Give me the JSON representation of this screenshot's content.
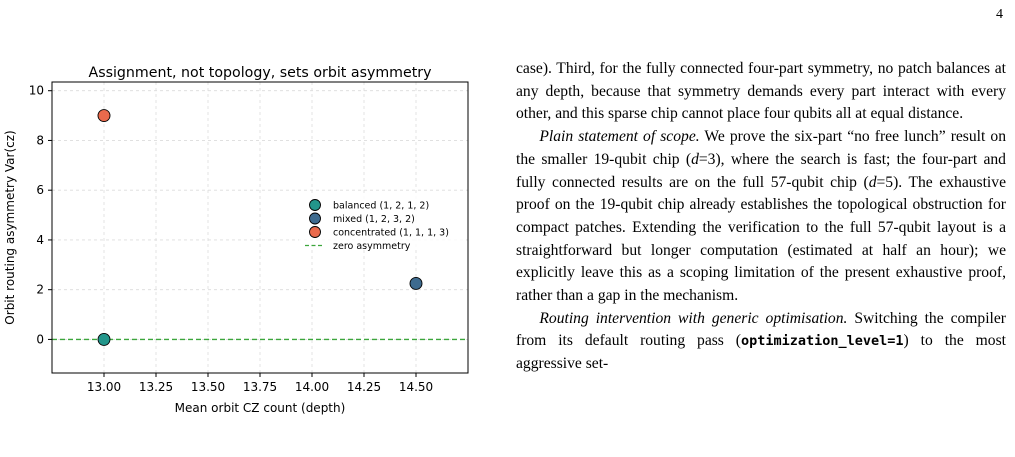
{
  "page_number": "4",
  "chart_data": {
    "type": "scatter",
    "title": "Assignment, not topology, sets orbit asymmetry",
    "xlabel": "Mean orbit CZ count (depth)",
    "ylabel": "Orbit routing asymmetry Var(cz)",
    "xlim": [
      12.75,
      14.75
    ],
    "ylim": [
      -1.35,
      10.35
    ],
    "xticks": [
      "13.00",
      "13.25",
      "13.50",
      "13.75",
      "14.00",
      "14.25",
      "14.50"
    ],
    "yticks": [
      "0",
      "2",
      "4",
      "6",
      "8",
      "10"
    ],
    "grid": true,
    "legend_position": "right",
    "series": [
      {
        "name": "balanced (1, 2, 1, 2)",
        "color": "#23968b",
        "points": [
          {
            "x": 13.0,
            "y": 0.0
          }
        ]
      },
      {
        "name": "mixed (1, 2, 3, 2)",
        "color": "#3e6b8f",
        "points": [
          {
            "x": 14.5,
            "y": 2.25
          }
        ]
      },
      {
        "name": "concentrated (1, 1, 1, 3)",
        "color": "#ea6a4c",
        "points": [
          {
            "x": 13.0,
            "y": 9.0
          }
        ]
      }
    ],
    "reference_lines": [
      {
        "name": "zero asymmetry",
        "y": 0,
        "color": "#3ca63c",
        "style": "dashed"
      }
    ]
  },
  "text": {
    "p1_lead": "case). Third, for the fully connected four-part symmetry, no patch balances at any depth, because that symmetry demands every part interact with every other, and this sparse chip cannot place four qubits all at equal distance.",
    "p2_head": "Plain statement of scope.",
    "p2_a": " We prove the six-part “no free lunch” result on the smaller 19-qubit chip (",
    "p2_d1": "d",
    "p2_b": "=3), where the search is fast; the four-part and fully connected results are on the full 57-qubit chip (",
    "p2_d2": "d",
    "p2_c": "=5). The exhaus­tive proof on the 19-qubit chip already establishes the topological obstruction for compact patches. Extending the verification to the full 57-qubit layout is a straight­forward but longer computation (estimated at half an hour); we explicitly leave this as a scoping limitation of the present exhaustive proof, rather than a gap in the mechanism.",
    "p3_head": "Routing intervention with generic optimisation.",
    "p3_a": " Switching the compiler from its default routing pass (",
    "p3_code": "optimization_level=1",
    "p3_b": ") to the most aggressive set-"
  }
}
